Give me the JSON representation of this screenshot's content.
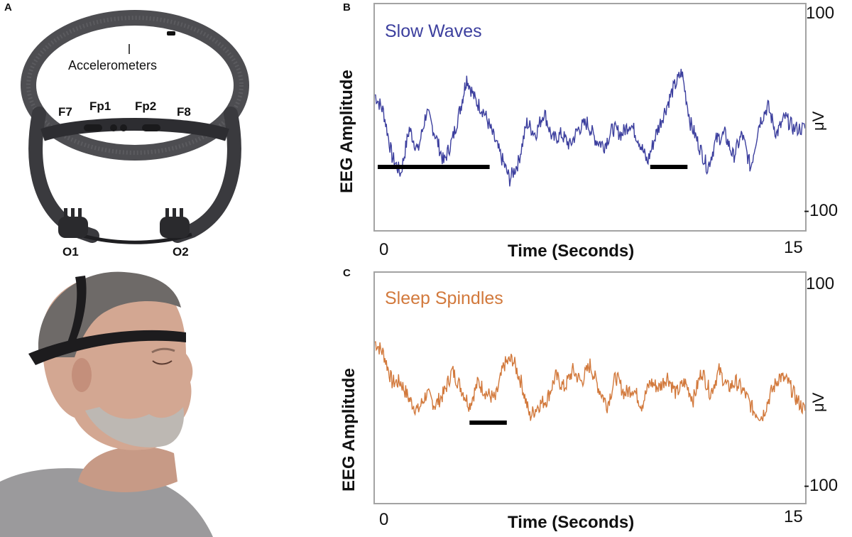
{
  "panel_labels": {
    "a": "A",
    "b": "B",
    "c": "C"
  },
  "device": {
    "accelerometer_label": "Accelerometers",
    "electrodes": [
      "F7",
      "Fp1",
      "Fp2",
      "F8"
    ],
    "occipital": [
      "O1",
      "O2"
    ]
  },
  "colors": {
    "slow_wave": "#3c3f9e",
    "spindle": "#d2793c",
    "marker": "#000000",
    "frame": "#a3a3a3"
  },
  "chart_data": [
    {
      "type": "line",
      "panel": "B",
      "title": "Slow Waves",
      "xlabel": "Time (Seconds)",
      "ylabel": "EEG Amplitude",
      "unit": "μV",
      "x_ticks": [
        "0",
        "15"
      ],
      "y_ticks": [
        "100",
        "-100"
      ],
      "xlim": [
        0,
        15
      ],
      "ylim": [
        -100,
        100
      ],
      "markers": [
        [
          0.1,
          4.0
        ],
        [
          9.6,
          10.9
        ]
      ],
      "series": [
        {
          "values": [
            [
              0,
              20
            ],
            [
              0.3,
              5
            ],
            [
              0.6,
              -35
            ],
            [
              0.9,
              -50
            ],
            [
              1.2,
              -10
            ],
            [
              1.5,
              -30
            ],
            [
              1.8,
              5
            ],
            [
              2.1,
              -15
            ],
            [
              2.4,
              -40
            ],
            [
              2.7,
              -20
            ],
            [
              3.0,
              10
            ],
            [
              3.2,
              35
            ],
            [
              3.5,
              15
            ],
            [
              3.8,
              5
            ],
            [
              4.1,
              -15
            ],
            [
              4.4,
              -35
            ],
            [
              4.7,
              -55
            ],
            [
              5.0,
              -40
            ],
            [
              5.3,
              -5
            ],
            [
              5.6,
              -15
            ],
            [
              5.9,
              5
            ],
            [
              6.2,
              -20
            ],
            [
              6.5,
              -15
            ],
            [
              6.8,
              -25
            ],
            [
              7.1,
              -10
            ],
            [
              7.4,
              -5
            ],
            [
              7.7,
              -20
            ],
            [
              8.0,
              -25
            ],
            [
              8.3,
              -10
            ],
            [
              8.6,
              -15
            ],
            [
              8.9,
              -5
            ],
            [
              9.2,
              -20
            ],
            [
              9.5,
              -40
            ],
            [
              9.8,
              -15
            ],
            [
              10.1,
              5
            ],
            [
              10.4,
              25
            ],
            [
              10.7,
              40
            ],
            [
              11.0,
              -5
            ],
            [
              11.3,
              -25
            ],
            [
              11.6,
              -45
            ],
            [
              11.9,
              -20
            ],
            [
              12.2,
              -15
            ],
            [
              12.5,
              -35
            ],
            [
              12.8,
              -15
            ],
            [
              13.1,
              -45
            ],
            [
              13.4,
              -5
            ],
            [
              13.7,
              10
            ],
            [
              14.0,
              -15
            ],
            [
              14.3,
              0
            ],
            [
              14.6,
              -10
            ],
            [
              15.0,
              -10
            ]
          ]
        }
      ]
    },
    {
      "type": "line",
      "panel": "C",
      "title": "Sleep Spindles",
      "xlabel": "Time (Seconds)",
      "ylabel": "EEG Amplitude",
      "unit": "μV",
      "x_ticks": [
        "0",
        "15"
      ],
      "y_ticks": [
        "100",
        "-100"
      ],
      "xlim": [
        0,
        15
      ],
      "ylim": [
        -100,
        100
      ],
      "markers": [
        [
          3.3,
          4.6
        ]
      ],
      "series": [
        {
          "values": [
            [
              0,
              40
            ],
            [
              0.3,
              30
            ],
            [
              0.6,
              5
            ],
            [
              0.9,
              5
            ],
            [
              1.2,
              -10
            ],
            [
              1.5,
              -20
            ],
            [
              1.8,
              -5
            ],
            [
              2.1,
              -15
            ],
            [
              2.4,
              -5
            ],
            [
              2.7,
              15
            ],
            [
              3.0,
              0
            ],
            [
              3.3,
              -15
            ],
            [
              3.6,
              5
            ],
            [
              3.9,
              -5
            ],
            [
              4.2,
              -10
            ],
            [
              4.5,
              20
            ],
            [
              4.8,
              25
            ],
            [
              5.1,
              5
            ],
            [
              5.4,
              -25
            ],
            [
              5.7,
              -15
            ],
            [
              6.0,
              -10
            ],
            [
              6.3,
              10
            ],
            [
              6.6,
              0
            ],
            [
              6.9,
              15
            ],
            [
              7.2,
              5
            ],
            [
              7.5,
              20
            ],
            [
              7.8,
              0
            ],
            [
              8.1,
              -15
            ],
            [
              8.4,
              10
            ],
            [
              8.7,
              -5
            ],
            [
              9.0,
              0
            ],
            [
              9.3,
              -15
            ],
            [
              9.6,
              5
            ],
            [
              9.9,
              0
            ],
            [
              10.2,
              10
            ],
            [
              10.5,
              -5
            ],
            [
              10.8,
              5
            ],
            [
              11.1,
              -10
            ],
            [
              11.4,
              15
            ],
            [
              11.7,
              -5
            ],
            [
              12.0,
              15
            ],
            [
              12.3,
              0
            ],
            [
              12.6,
              5
            ],
            [
              12.9,
              -5
            ],
            [
              13.2,
              -20
            ],
            [
              13.5,
              -25
            ],
            [
              13.8,
              -5
            ],
            [
              14.1,
              10
            ],
            [
              14.4,
              5
            ],
            [
              14.7,
              -10
            ],
            [
              15.0,
              -20
            ]
          ]
        }
      ]
    }
  ]
}
